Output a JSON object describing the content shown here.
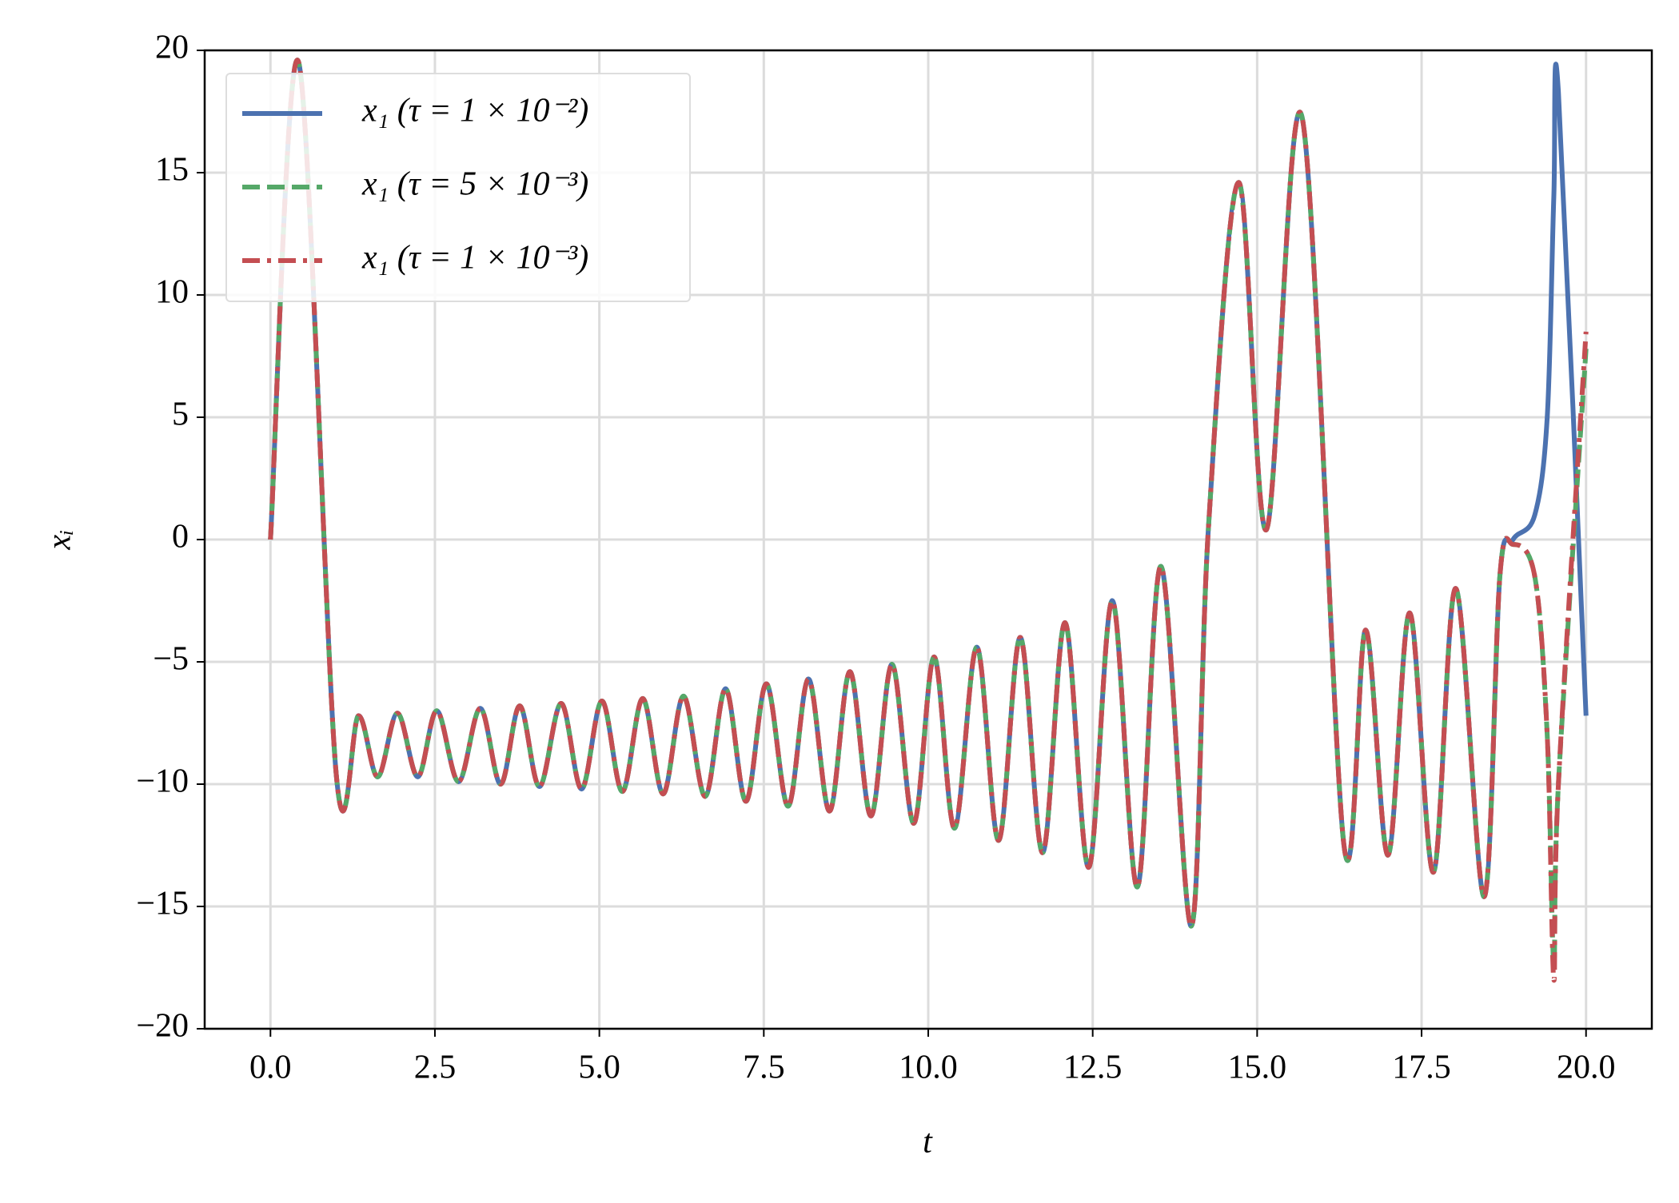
{
  "chart_data": {
    "type": "line",
    "xlabel": "t",
    "ylabel": "xᵢ",
    "x": [
      0,
      0.43,
      1.0,
      1.34,
      1.63,
      1.93,
      2.24,
      2.53,
      2.86,
      3.19,
      3.5,
      3.79,
      4.09,
      4.42,
      4.73,
      5.04,
      5.35,
      5.66,
      5.97,
      6.28,
      6.61,
      6.92,
      7.23,
      7.54,
      7.87,
      8.18,
      8.5,
      8.81,
      9.13,
      9.45,
      9.78,
      10.09,
      10.4,
      10.74,
      11.07,
      11.4,
      11.74,
      12.08,
      12.44,
      12.8,
      13.18,
      13.54,
      14.0,
      14.26,
      14.72,
      15.14,
      15.68,
      16.32,
      16.65,
      16.99,
      17.32,
      17.68,
      18.02,
      18.45,
      18.69,
      18.89,
      19.22,
      19.41,
      19.51,
      19.58,
      20.0
    ],
    "series": [
      {
        "name": "x₁ (τ = 1 × 10⁻²)",
        "color": "#4c72b0",
        "linestyle": "solid",
        "values": [
          0,
          19.5,
          -9.6,
          -7.2,
          -9.7,
          -7.1,
          -9.7,
          -7.0,
          -9.9,
          -6.9,
          -10.0,
          -6.8,
          -10.1,
          -6.7,
          -10.2,
          -6.6,
          -10.3,
          -6.5,
          -10.4,
          -6.4,
          -10.5,
          -6.1,
          -10.7,
          -5.9,
          -10.9,
          -5.7,
          -11.1,
          -5.4,
          -11.3,
          -5.1,
          -11.6,
          -4.8,
          -11.8,
          -4.4,
          -12.3,
          -4.0,
          -12.8,
          -3.4,
          -13.4,
          -2.5,
          -14.2,
          -1.1,
          -15.8,
          0.5,
          14.6,
          0.4,
          17.3,
          -12.5,
          -3.7,
          -12.9,
          -3.0,
          -13.6,
          -2.0,
          -14.6,
          -1.5,
          0,
          1.0,
          5,
          14,
          18.3,
          -7.2
        ]
      },
      {
        "name": "x₁ (τ = 5 × 10⁻³)",
        "color": "#55a868",
        "linestyle": "dashed",
        "values": [
          0,
          19.5,
          -9.6,
          -7.2,
          -9.7,
          -7.1,
          -9.7,
          -7.0,
          -9.9,
          -6.9,
          -10.0,
          -6.8,
          -10.1,
          -6.7,
          -10.2,
          -6.6,
          -10.3,
          -6.5,
          -10.4,
          -6.4,
          -10.5,
          -6.1,
          -10.7,
          -5.9,
          -10.9,
          -5.7,
          -11.1,
          -5.4,
          -11.3,
          -5.1,
          -11.6,
          -4.8,
          -11.8,
          -4.4,
          -12.3,
          -4.0,
          -12.8,
          -3.4,
          -13.4,
          -2.5,
          -14.2,
          -1.1,
          -15.8,
          0.5,
          14.6,
          0.4,
          17.3,
          -12.5,
          -3.7,
          -12.9,
          -3.0,
          -13.6,
          -2.0,
          -14.6,
          -1.5,
          -0.2,
          -1.5,
          -8,
          -17.3,
          -10,
          7.8
        ]
      },
      {
        "name": "x₁ (τ = 1 × 10⁻³)",
        "color": "#c44e52",
        "linestyle": "dashdot",
        "values": [
          0,
          19.5,
          -9.6,
          -7.2,
          -9.7,
          -7.1,
          -9.7,
          -7.0,
          -9.9,
          -6.9,
          -10.0,
          -6.8,
          -10.1,
          -6.7,
          -10.2,
          -6.6,
          -10.3,
          -6.5,
          -10.4,
          -6.4,
          -10.5,
          -6.1,
          -10.7,
          -5.9,
          -10.9,
          -5.7,
          -11.1,
          -5.4,
          -11.3,
          -5.1,
          -11.6,
          -4.8,
          -11.8,
          -4.4,
          -12.3,
          -4.0,
          -12.8,
          -3.4,
          -13.4,
          -2.5,
          -14.2,
          -1.1,
          -15.8,
          0.5,
          14.6,
          0.4,
          17.3,
          -12.5,
          -3.7,
          -12.9,
          -3.0,
          -13.6,
          -2.0,
          -14.6,
          -1.5,
          -0.2,
          -1.5,
          -8,
          -18.0,
          -10,
          8.5
        ]
      }
    ],
    "xlim": [
      -1,
      21
    ],
    "ylim": [
      -20,
      20
    ],
    "xticks": [
      {
        "value": 0,
        "label": "0.0"
      },
      2.5,
      {
        "value": 5,
        "label": "5.0"
      },
      7.5,
      {
        "value": 10,
        "label": "10.0"
      },
      12.5,
      {
        "value": 15,
        "label": "15.0"
      },
      17.5,
      {
        "value": 20,
        "label": "20.0"
      }
    ],
    "yticks": [
      {
        "value": -20,
        "label": "−20"
      },
      {
        "value": -15,
        "label": "−15"
      },
      {
        "value": -10,
        "label": "−10"
      },
      {
        "value": -5,
        "label": "−5"
      },
      0,
      5,
      10,
      15,
      20
    ],
    "grid": true,
    "legend": "upper left"
  }
}
